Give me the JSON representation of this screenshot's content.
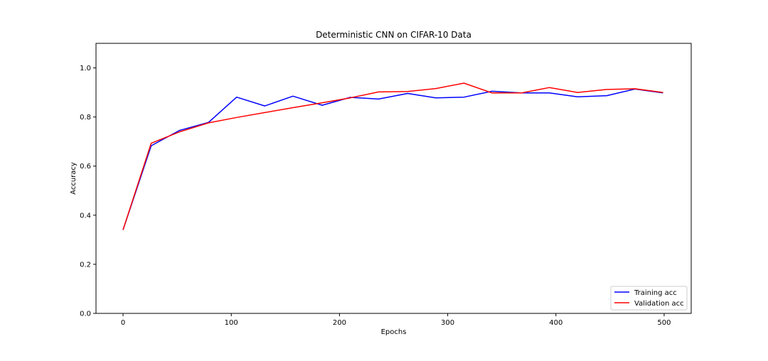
{
  "chart_data": {
    "type": "line",
    "title": "Deterministic CNN on CIFAR-10 Data",
    "xlabel": "Epochs",
    "ylabel": "Accuracy",
    "xlim": [
      -25,
      525
    ],
    "ylim": [
      0.0,
      1.1
    ],
    "xticks": [
      0,
      100,
      200,
      300,
      400,
      500
    ],
    "yticks": [
      0.0,
      0.2,
      0.4,
      0.6,
      0.8,
      1.0
    ],
    "xtick_labels": [
      "0",
      "100",
      "200",
      "300",
      "400",
      "500"
    ],
    "ytick_labels": [
      "0.0",
      "0.2",
      "0.4",
      "0.6",
      "0.8",
      "1.0"
    ],
    "grid": false,
    "legend_position": "bottom-right",
    "x": [
      0,
      26,
      52,
      79,
      105,
      131,
      157,
      184,
      210,
      236,
      263,
      289,
      315,
      341,
      368,
      394,
      420,
      447,
      473,
      499
    ],
    "series": [
      {
        "name": "Training acc",
        "color": "#0000ff",
        "values": [
          0.34,
          0.683,
          0.745,
          0.778,
          0.881,
          0.845,
          0.885,
          0.848,
          0.88,
          0.873,
          0.896,
          0.878,
          0.881,
          0.905,
          0.898,
          0.898,
          0.882,
          0.887,
          0.914,
          0.898
        ]
      },
      {
        "name": "Validation acc",
        "color": "#ff0000",
        "values": [
          0.34,
          0.693,
          0.739,
          0.776,
          0.798,
          0.818,
          0.838,
          0.858,
          0.878,
          0.902,
          0.904,
          0.916,
          0.938,
          0.898,
          0.898,
          0.92,
          0.9,
          0.912,
          0.915,
          0.9
        ]
      }
    ]
  }
}
